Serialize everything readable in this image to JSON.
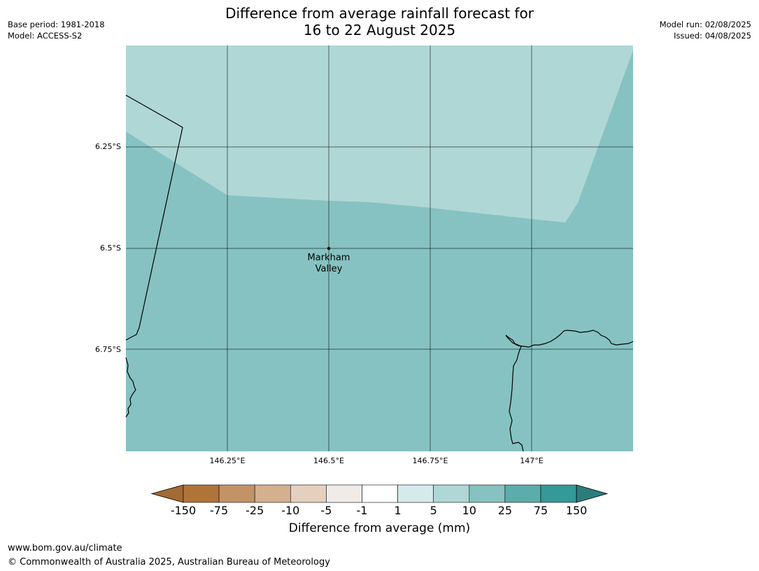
{
  "header": {
    "title_line1": "Difference from average rainfall forecast for",
    "title_line2": "16 to 22 August 2025",
    "base_period": "Base period: 1981-2018",
    "model": "Model: ACCESS-S2",
    "model_run": "Model run: 02/08/2025",
    "issued": "Issued: 04/08/2025"
  },
  "map": {
    "lat_labels": [
      "6.25°S",
      "6.5°S",
      "6.75°S"
    ],
    "lon_labels": [
      "146.25°E",
      "146.5°E",
      "146.75°E",
      "147°E"
    ],
    "place": {
      "name_line1": "Markham",
      "name_line2": "Valley",
      "lat": -6.5,
      "lon": 146.5
    },
    "extent": {
      "lon_min": 146.0,
      "lon_max": 147.25,
      "lat_min": -7.0,
      "lat_max": -6.0
    },
    "region_categories": [
      {
        "range": "5 to 10",
        "color": "#afd7d6"
      },
      {
        "range": "10 to 25",
        "color": "#86c2c1"
      }
    ]
  },
  "colorbar": {
    "title": "Difference from average (mm)",
    "tick_labels": [
      "-150",
      "-75",
      "-25",
      "-10",
      "-5",
      "-1",
      "1",
      "5",
      "10",
      "25",
      "75",
      "150"
    ],
    "colors": [
      "#a46a34",
      "#b07439",
      "#c29365",
      "#d4b08f",
      "#e5d0bf",
      "#f0ebe7",
      "#ffffff",
      "#d5eaea",
      "#afd7d6",
      "#86c2c1",
      "#5bacab",
      "#349998",
      "#2b7d7c"
    ]
  },
  "footer": {
    "url": "www.bom.gov.au/climate",
    "copyright": "© Commonwealth of Australia 2025, Australian Bureau of Meteorology"
  }
}
